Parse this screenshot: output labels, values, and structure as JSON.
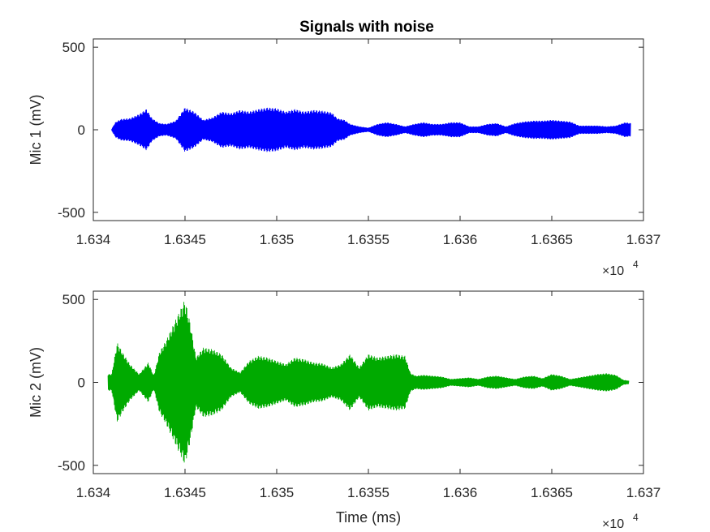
{
  "figure": {
    "title": "Signals with noise"
  },
  "chart_data": [
    {
      "type": "line",
      "title": "Signals with noise",
      "xlabel": "",
      "ylabel": "Mic 1 (mV)",
      "xlim": [
        16340,
        16370
      ],
      "ylim": [
        -550,
        550
      ],
      "xticks": [
        "1.634",
        "1.6345",
        "1.635",
        "1.6355",
        "1.636",
        "1.6365",
        "1.637"
      ],
      "yticks": [
        "-500",
        "0",
        "500"
      ],
      "x_exponent_base": "×10",
      "x_exponent_power": "4",
      "color": "#0000ff",
      "grid": false,
      "envelope_x": [
        16341.0,
        16341.2,
        16341.5,
        16342.0,
        16342.5,
        16342.9,
        16343.2,
        16343.6,
        16344.0,
        16344.5,
        16345.0,
        16345.5,
        16346.0,
        16346.5,
        16347.0,
        16347.5,
        16348.0,
        16348.5,
        16349.0,
        16349.5,
        16350.0,
        16350.5,
        16351.0,
        16351.5,
        16352.0,
        16352.5,
        16353.0,
        16353.3,
        16353.7,
        16354.0,
        16354.5,
        16355.0,
        16355.5,
        16356.0,
        16356.5,
        16357.0,
        16357.5,
        16358.0,
        16358.5,
        16359.0,
        16359.5,
        16360.0,
        16360.5,
        16361.0,
        16361.5,
        16362.0,
        16362.5,
        16363.0,
        16363.5,
        16364.0,
        16364.5,
        16365.0,
        16365.5,
        16366.0,
        16366.5,
        16367.0,
        16367.5,
        16368.0,
        16368.5,
        16369.0,
        16369.3
      ],
      "envelope_amp": [
        5,
        45,
        65,
        70,
        95,
        125,
        70,
        40,
        35,
        55,
        135,
        110,
        60,
        75,
        110,
        100,
        120,
        110,
        125,
        135,
        130,
        110,
        125,
        110,
        120,
        115,
        105,
        70,
        60,
        35,
        20,
        12,
        35,
        45,
        35,
        20,
        35,
        45,
        35,
        35,
        45,
        45,
        20,
        20,
        35,
        40,
        20,
        40,
        50,
        55,
        55,
        60,
        55,
        50,
        25,
        25,
        25,
        20,
        25,
        45,
        40
      ]
    },
    {
      "type": "line",
      "title": "",
      "xlabel": "Time (ms)",
      "ylabel": "Mic 2 (mV)",
      "xlim": [
        16340,
        16370
      ],
      "ylim": [
        -550,
        550
      ],
      "xticks": [
        "1.634",
        "1.6345",
        "1.635",
        "1.6355",
        "1.636",
        "1.6365",
        "1.637"
      ],
      "yticks": [
        "-500",
        "0",
        "500"
      ],
      "x_exponent_base": "×10",
      "x_exponent_power": "4",
      "color": "#00aa00",
      "grid": false,
      "envelope_x": [
        16340.8,
        16341.0,
        16341.3,
        16341.6,
        16342.0,
        16342.5,
        16343.0,
        16343.3,
        16343.6,
        16344.0,
        16344.5,
        16345.0,
        16345.3,
        16345.6,
        16346.0,
        16346.5,
        16347.0,
        16347.5,
        16348.0,
        16348.5,
        16349.0,
        16349.5,
        16350.0,
        16350.5,
        16351.0,
        16351.5,
        16352.0,
        16352.5,
        16353.0,
        16353.5,
        16354.0,
        16354.5,
        16355.0,
        16355.5,
        16356.0,
        16356.5,
        16357.0,
        16357.3,
        16357.6,
        16358.0,
        16358.5,
        16359.0,
        16359.5,
        16360.0,
        16360.5,
        16361.0,
        16361.5,
        16362.0,
        16362.5,
        16363.0,
        16363.5,
        16364.0,
        16364.5,
        16365.0,
        16365.5,
        16366.0,
        16366.5,
        16367.0,
        16367.5,
        16368.0,
        16368.5,
        16368.9,
        16369.2
      ],
      "envelope_amp": [
        50,
        50,
        240,
        180,
        110,
        50,
        120,
        40,
        180,
        260,
        380,
        500,
        350,
        150,
        210,
        200,
        170,
        90,
        60,
        130,
        160,
        150,
        130,
        110,
        150,
        140,
        120,
        115,
        90,
        110,
        170,
        90,
        170,
        150,
        160,
        170,
        160,
        55,
        40,
        45,
        40,
        35,
        20,
        25,
        30,
        20,
        35,
        40,
        30,
        20,
        35,
        40,
        25,
        50,
        40,
        20,
        30,
        40,
        50,
        55,
        45,
        15,
        10
      ]
    }
  ]
}
